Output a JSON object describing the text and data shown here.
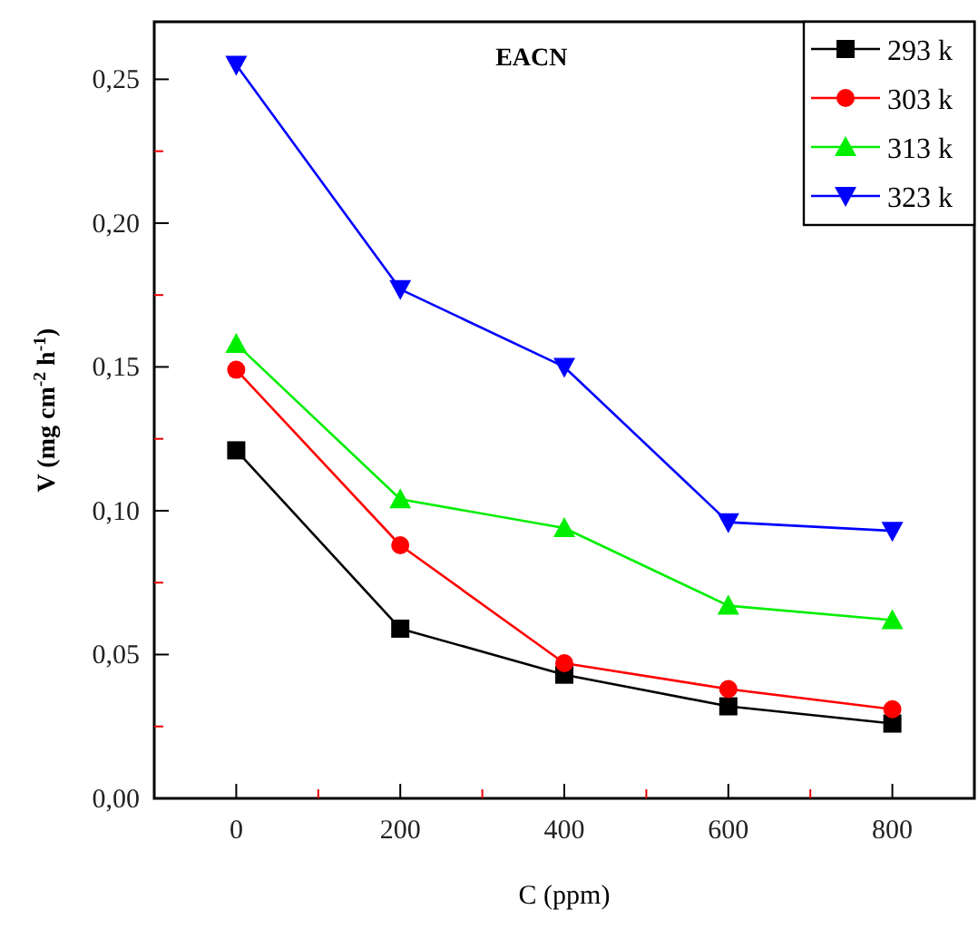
{
  "chart_data": {
    "type": "line",
    "title": "EACN",
    "xlabel": "C (ppm)",
    "ylabel": "V (mg cm$^{-2}$ h$^{-1}$)",
    "x": [
      0,
      200,
      400,
      600,
      800
    ],
    "xlim": [
      -100,
      900
    ],
    "xticks": [
      0,
      {
        "value": 100,
        "label": null
      },
      200,
      {
        "value": 300,
        "label": null
      },
      400,
      {
        "value": 500,
        "label": null
      },
      600,
      {
        "value": 700,
        "label": null
      },
      800
    ],
    "ylim": [
      0,
      0.27
    ],
    "yticks": [
      {
        "value": 0,
        "label": "0,00"
      },
      {
        "value": 0.025,
        "label": null
      },
      {
        "value": 0.05,
        "label": "0,05"
      },
      {
        "value": 0.075,
        "label": null
      },
      {
        "value": 0.1,
        "label": "0,10"
      },
      {
        "value": 0.125,
        "label": null
      },
      {
        "value": 0.15,
        "label": "0,15"
      },
      {
        "value": 0.175,
        "label": null
      },
      {
        "value": 0.2,
        "label": "0,20"
      },
      {
        "value": 0.225,
        "label": null
      },
      {
        "value": 0.25,
        "label": "0,25"
      }
    ],
    "legend": "top right",
    "grid": false,
    "series": [
      {
        "name": "293 k",
        "color": "#000000",
        "marker": "square",
        "values": [
          0.121,
          0.059,
          0.043,
          0.032,
          0.026
        ]
      },
      {
        "name": "303 k",
        "color": "#ff0000",
        "marker": "circle",
        "values": [
          0.149,
          0.088,
          0.047,
          0.038,
          0.031
        ]
      },
      {
        "name": "313 k",
        "color": "#00ee00",
        "marker": "triangle",
        "values": [
          0.158,
          0.104,
          0.094,
          0.067,
          0.062
        ]
      },
      {
        "name": "323 k",
        "color": "#0000ff",
        "marker": "triangle-down",
        "values": [
          0.255,
          0.177,
          0.15,
          0.096,
          0.093
        ]
      }
    ]
  }
}
